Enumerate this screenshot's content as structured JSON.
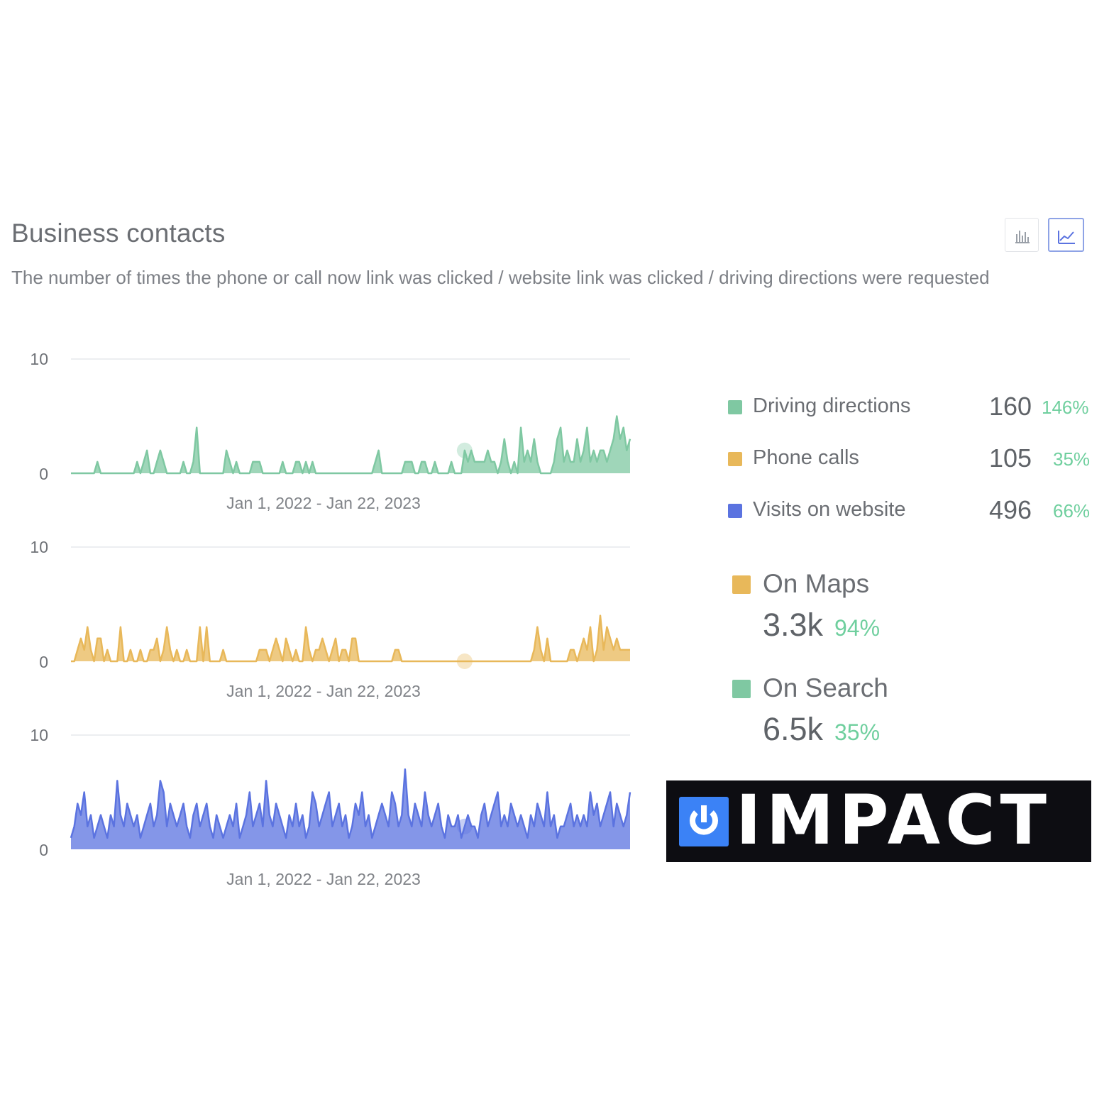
{
  "header": {
    "title": "Business contacts",
    "subtitle": "The number of times the phone or call now link was clicked / website link was clicked / driving directions were requested"
  },
  "view_toggle": {
    "options": [
      "bar-chart-icon",
      "line-chart-icon"
    ],
    "selected": "line-chart-icon"
  },
  "legend": {
    "items": [
      {
        "label": "Driving directions",
        "value": "160",
        "change": "146%",
        "color": "#7fc8a2"
      },
      {
        "label": "Phone calls",
        "value": "105",
        "change": "35%",
        "color": "#e8b85a"
      },
      {
        "label": "Visits on website",
        "value": "496",
        "change": "66%",
        "color": "#5b73e0"
      }
    ]
  },
  "sources": [
    {
      "label": "On Maps",
      "value": "3.3k",
      "change": "94%",
      "color": "#e8b85a"
    },
    {
      "label": "On Search",
      "value": "6.5k",
      "change": "35%",
      "color": "#7fc8a2"
    }
  ],
  "logo": {
    "wordmark": "IMPACT",
    "accent": "#3b82f6"
  },
  "chart_data": [
    {
      "type": "area",
      "name": "Driving directions",
      "color": "#7fc8a2",
      "xlabel": "Jan 1, 2022 - Jan 22, 2023",
      "ylim": [
        0,
        10
      ],
      "yticks": [
        "0",
        "10"
      ],
      "values": [
        0,
        0,
        0,
        0,
        0,
        0,
        0,
        0,
        1,
        0,
        0,
        0,
        0,
        0,
        0,
        0,
        0,
        0,
        0,
        0,
        1,
        0,
        1,
        2,
        0,
        0,
        1,
        2,
        1,
        0,
        0,
        0,
        0,
        0,
        1,
        0,
        0,
        1,
        4,
        0,
        0,
        0,
        0,
        0,
        0,
        0,
        0,
        2,
        1,
        0,
        1,
        0,
        0,
        0,
        0,
        1,
        1,
        1,
        0,
        0,
        0,
        0,
        0,
        0,
        1,
        0,
        0,
        0,
        1,
        1,
        0,
        1,
        0,
        1,
        0,
        0,
        0,
        0,
        0,
        0,
        0,
        0,
        0,
        0,
        0,
        0,
        0,
        0,
        0,
        0,
        0,
        0,
        1,
        2,
        0,
        0,
        0,
        0,
        0,
        0,
        0,
        1,
        1,
        1,
        0,
        0,
        1,
        1,
        0,
        0,
        1,
        0,
        0,
        0,
        0,
        1,
        0,
        0,
        0,
        2,
        1,
        2,
        1,
        1,
        1,
        1,
        2,
        1,
        1,
        0,
        1,
        3,
        1,
        0,
        1,
        0,
        4,
        1,
        2,
        1,
        3,
        1,
        0,
        0,
        0,
        0,
        1,
        3,
        4,
        1,
        2,
        1,
        1,
        3,
        1,
        2,
        4,
        1,
        2,
        1,
        2,
        2,
        1,
        2,
        3,
        5,
        3,
        4,
        2,
        3
      ]
    },
    {
      "type": "area",
      "name": "Phone calls",
      "color": "#e8b85a",
      "xlabel": "Jan 1, 2022 - Jan 22, 2023",
      "ylim": [
        0,
        10
      ],
      "yticks": [
        "0",
        "10"
      ],
      "values": [
        0,
        0,
        1,
        2,
        1,
        3,
        1,
        0,
        2,
        2,
        0,
        1,
        0,
        0,
        0,
        3,
        0,
        0,
        1,
        0,
        0,
        1,
        0,
        0,
        1,
        1,
        2,
        0,
        1,
        3,
        1,
        0,
        1,
        0,
        0,
        1,
        0,
        0,
        0,
        3,
        0,
        3,
        0,
        0,
        0,
        0,
        1,
        0,
        0,
        0,
        0,
        0,
        0,
        0,
        0,
        0,
        0,
        1,
        1,
        1,
        0,
        1,
        2,
        1,
        0,
        2,
        1,
        0,
        1,
        0,
        0,
        3,
        1,
        0,
        1,
        1,
        2,
        1,
        0,
        1,
        2,
        0,
        1,
        1,
        0,
        2,
        2,
        0,
        0,
        0,
        0,
        0,
        0,
        0,
        0,
        0,
        0,
        0,
        1,
        1,
        0,
        0,
        0,
        0,
        0,
        0,
        0,
        0,
        0,
        0,
        0,
        0,
        0,
        0,
        0,
        0,
        0,
        0,
        0,
        0,
        0,
        0,
        0,
        0,
        0,
        0,
        0,
        0,
        0,
        0,
        0,
        0,
        0,
        0,
        0,
        0,
        0,
        0,
        0,
        0,
        1,
        3,
        1,
        0,
        2,
        0,
        0,
        0,
        0,
        0,
        0,
        1,
        1,
        0,
        1,
        2,
        1,
        3,
        0,
        1,
        4,
        1,
        3,
        2,
        1,
        2,
        1,
        1,
        1,
        1
      ]
    },
    {
      "type": "area",
      "name": "Visits on website",
      "color": "#5b73e0",
      "xlabel": "Jan 1, 2022 - Jan 22, 2023",
      "ylim": [
        0,
        10
      ],
      "yticks": [
        "0",
        "10"
      ],
      "values": [
        1,
        2,
        4,
        3,
        5,
        2,
        3,
        1,
        2,
        3,
        2,
        1,
        3,
        2,
        6,
        3,
        2,
        4,
        3,
        2,
        3,
        1,
        2,
        3,
        4,
        2,
        3,
        6,
        5,
        2,
        4,
        3,
        2,
        3,
        4,
        2,
        1,
        3,
        4,
        2,
        3,
        4,
        2,
        1,
        3,
        2,
        1,
        2,
        3,
        2,
        4,
        1,
        2,
        3,
        5,
        2,
        3,
        4,
        2,
        6,
        3,
        2,
        4,
        3,
        2,
        1,
        3,
        2,
        4,
        2,
        3,
        1,
        2,
        5,
        4,
        2,
        3,
        4,
        5,
        2,
        3,
        4,
        2,
        3,
        1,
        2,
        4,
        3,
        5,
        2,
        3,
        1,
        2,
        3,
        4,
        3,
        2,
        5,
        4,
        2,
        3,
        7,
        3,
        2,
        4,
        3,
        2,
        5,
        3,
        2,
        3,
        4,
        2,
        1,
        3,
        2,
        2,
        3,
        1,
        2,
        3,
        2,
        2,
        1,
        3,
        4,
        2,
        3,
        4,
        5,
        2,
        3,
        2,
        4,
        3,
        2,
        3,
        2,
        1,
        3,
        2,
        4,
        3,
        2,
        5,
        2,
        3,
        1,
        2,
        2,
        3,
        4,
        2,
        3,
        2,
        3,
        2,
        5,
        3,
        4,
        2,
        3,
        4,
        5,
        2,
        4,
        3,
        2,
        3,
        5
      ]
    }
  ]
}
